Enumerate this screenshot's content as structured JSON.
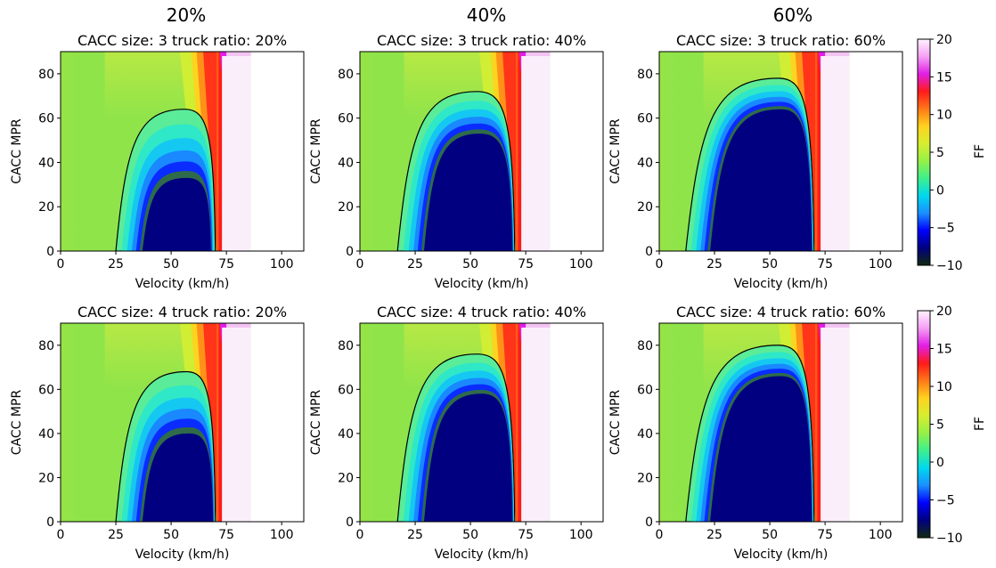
{
  "column_titles": [
    "20%",
    "40%",
    "60%"
  ],
  "chart_data": {
    "type": "heatmap",
    "layout": {
      "rows": 2,
      "cols": 3
    },
    "xlabel": "Velocity (km/h)",
    "ylabel": "CACC MPR",
    "xlim": [
      0,
      110
    ],
    "ylim": [
      0,
      90
    ],
    "xticks": [
      0,
      25,
      50,
      75,
      100
    ],
    "yticks": [
      0,
      20,
      40,
      60,
      80
    ],
    "xtick_labels": [
      "0",
      "25",
      "50",
      "75",
      "100"
    ],
    "ytick_labels": [
      "0",
      "20",
      "40",
      "60",
      "80"
    ],
    "colorbar": {
      "label": "FF",
      "range": [
        -10,
        20
      ],
      "ticks": [
        -10,
        -5,
        0,
        5,
        10,
        15,
        20
      ],
      "tick_labels": [
        "−10",
        "−5",
        "0",
        "5",
        "10",
        "15",
        "20"
      ],
      "colors": [
        "#102a10",
        "#000080",
        "#0000ff",
        "#1a90ff",
        "#00d8ee",
        "#3ef08c",
        "#96f046",
        "#d6ee30",
        "#ffd21e",
        "#ff7818",
        "#ff1a1a",
        "#e11ee6",
        "#f5a0f5",
        "#fff2ff"
      ]
    },
    "panels": [
      {
        "title": "CACC size: 3 truck ratio: 20%",
        "contour": {
          "v_min": 25,
          "v_max": 70,
          "peak_v": 56,
          "peak_mpr": 64
        },
        "core": {
          "v_min": 37,
          "v_max": 68,
          "peak_v": 57,
          "peak_mpr": 33
        }
      },
      {
        "title": "CACC size: 3 truck ratio: 40%",
        "contour": {
          "v_min": 17,
          "v_max": 70,
          "peak_v": 53,
          "peak_mpr": 72
        },
        "core": {
          "v_min": 29,
          "v_max": 69,
          "peak_v": 54,
          "peak_mpr": 53
        }
      },
      {
        "title": "CACC size: 3 truck ratio: 60%",
        "contour": {
          "v_min": 12,
          "v_max": 70,
          "peak_v": 54,
          "peak_mpr": 78
        },
        "core": {
          "v_min": 23,
          "v_max": 69,
          "peak_v": 55,
          "peak_mpr": 64
        }
      },
      {
        "title": "CACC size: 4 truck ratio: 20%",
        "contour": {
          "v_min": 25,
          "v_max": 70,
          "peak_v": 57,
          "peak_mpr": 68
        },
        "core": {
          "v_min": 37,
          "v_max": 69,
          "peak_v": 58,
          "peak_mpr": 40
        }
      },
      {
        "title": "CACC size: 4 truck ratio: 40%",
        "contour": {
          "v_min": 17,
          "v_max": 70,
          "peak_v": 53,
          "peak_mpr": 76
        },
        "core": {
          "v_min": 29,
          "v_max": 69,
          "peak_v": 55,
          "peak_mpr": 58
        }
      },
      {
        "title": "CACC size: 4 truck ratio: 60%",
        "contour": {
          "v_min": 12,
          "v_max": 70,
          "peak_v": 54,
          "peak_mpr": 80
        },
        "core": {
          "v_min": 23,
          "v_max": 69,
          "peak_v": 55,
          "peak_mpr": 66
        }
      }
    ]
  }
}
